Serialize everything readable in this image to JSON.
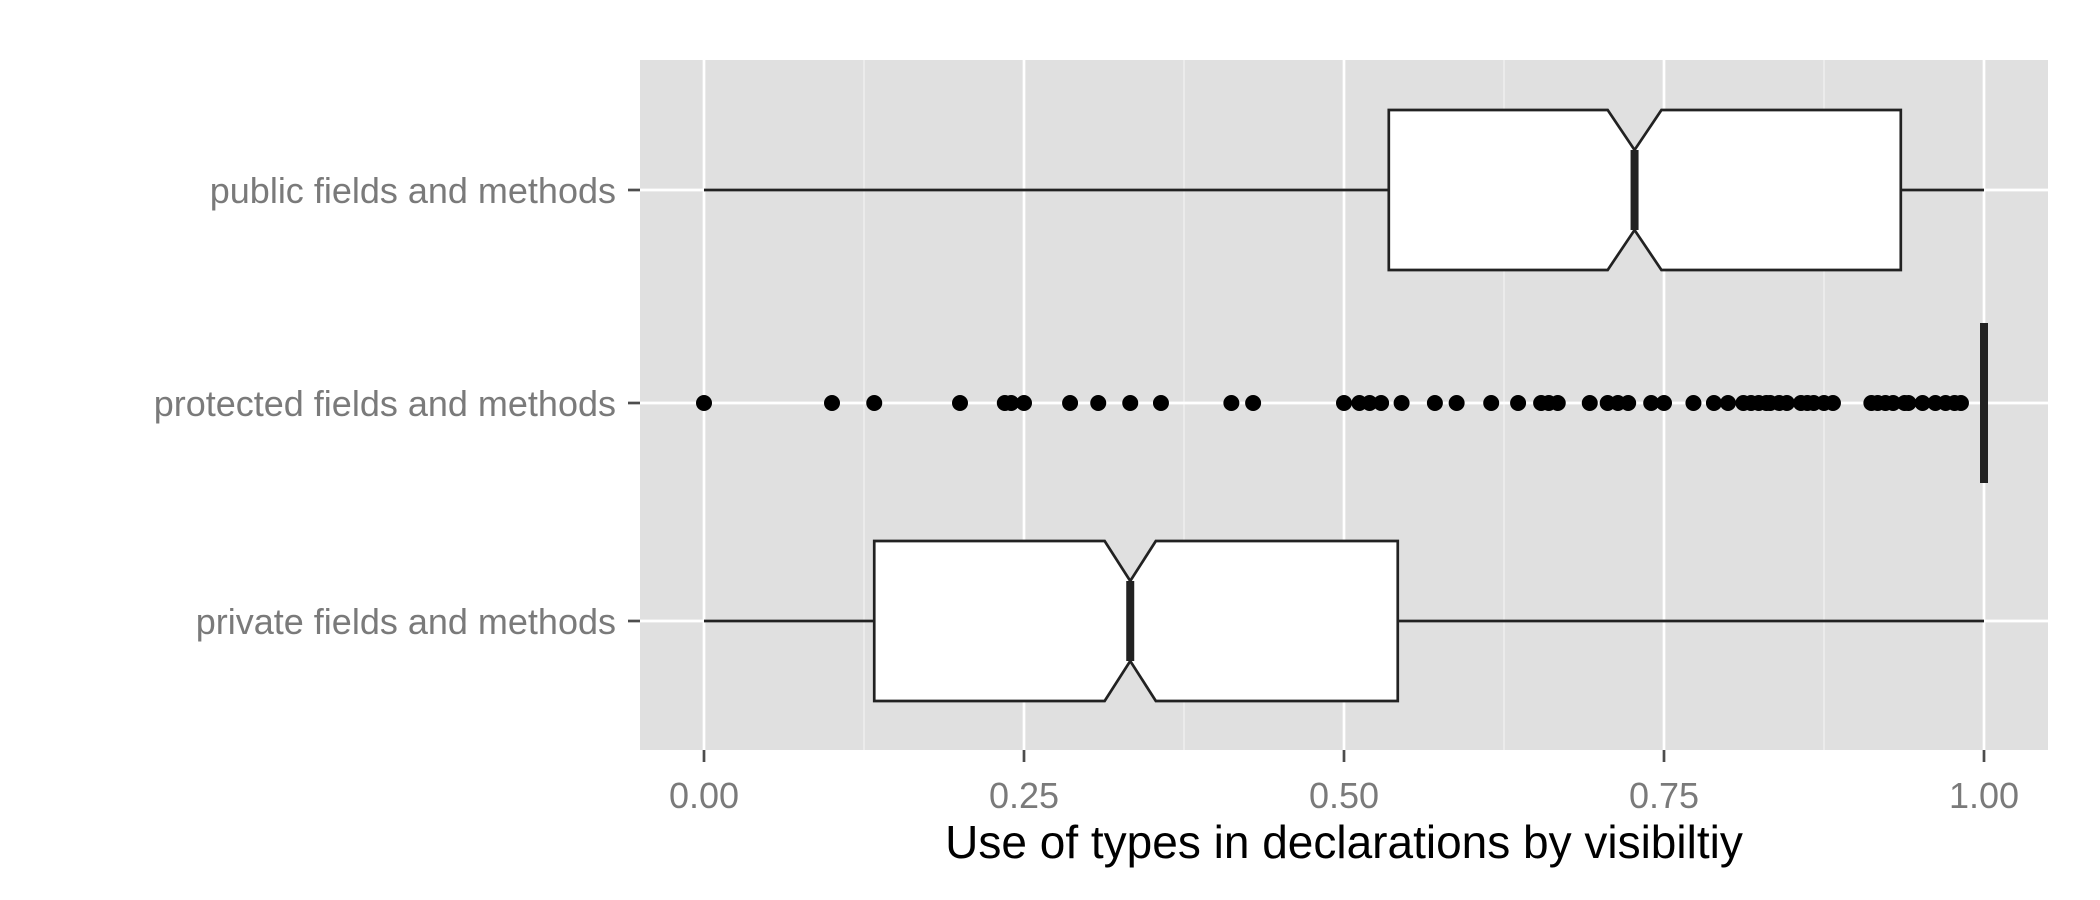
{
  "chart_data": {
    "type": "boxplot",
    "orientation": "horizontal",
    "notched": true,
    "title": "",
    "xlabel": "Use of types in declarations by visibiltiy",
    "ylabel": "",
    "xlim": [
      -0.05,
      1.05
    ],
    "x_ticks": [
      0.0,
      0.25,
      0.5,
      0.75,
      1.0
    ],
    "x_tick_labels": [
      "0.00",
      "0.25",
      "0.50",
      "0.75",
      "1.00"
    ],
    "categories": [
      "public fields and methods",
      "protected fields and methods",
      "private fields and methods"
    ],
    "series": [
      {
        "category": "public fields and methods",
        "whisker_low": 0.0,
        "q1": 0.535,
        "median": 0.727,
        "q3": 0.935,
        "whisker_high": 1.0,
        "notch_low": 0.706,
        "notch_high": 0.748,
        "outliers": []
      },
      {
        "category": "protected fields and methods",
        "whisker_low": 1.0,
        "q1": 1.0,
        "median": 1.0,
        "q3": 1.0,
        "whisker_high": 1.0,
        "notch_low": 1.0,
        "notch_high": 1.0,
        "outliers": [
          0.0,
          0.1,
          0.133,
          0.2,
          0.235,
          0.24,
          0.25,
          0.286,
          0.308,
          0.333,
          0.357,
          0.412,
          0.429,
          0.5,
          0.512,
          0.52,
          0.529,
          0.545,
          0.571,
          0.588,
          0.615,
          0.636,
          0.654,
          0.66,
          0.667,
          0.692,
          0.706,
          0.714,
          0.722,
          0.74,
          0.75,
          0.773,
          0.789,
          0.8,
          0.812,
          0.818,
          0.824,
          0.83,
          0.833,
          0.84,
          0.846,
          0.857,
          0.862,
          0.867,
          0.875,
          0.882,
          0.912,
          0.917,
          0.923,
          0.929,
          0.938,
          0.941,
          0.952,
          0.962,
          0.97,
          0.977,
          0.982
        ]
      },
      {
        "category": "private fields and methods",
        "whisker_low": 0.0,
        "q1": 0.133,
        "median": 0.333,
        "q3": 0.542,
        "whisker_high": 1.0,
        "notch_low": 0.313,
        "notch_high": 0.353,
        "outliers": []
      }
    ],
    "grid": true,
    "legend": "none",
    "colors": {
      "panel": "#e0e0e0",
      "grid": "#ffffff",
      "box_fill": "#ffffff",
      "box_stroke": "#222222",
      "points": "#000000",
      "tick_label": "#7a7a7a"
    }
  }
}
